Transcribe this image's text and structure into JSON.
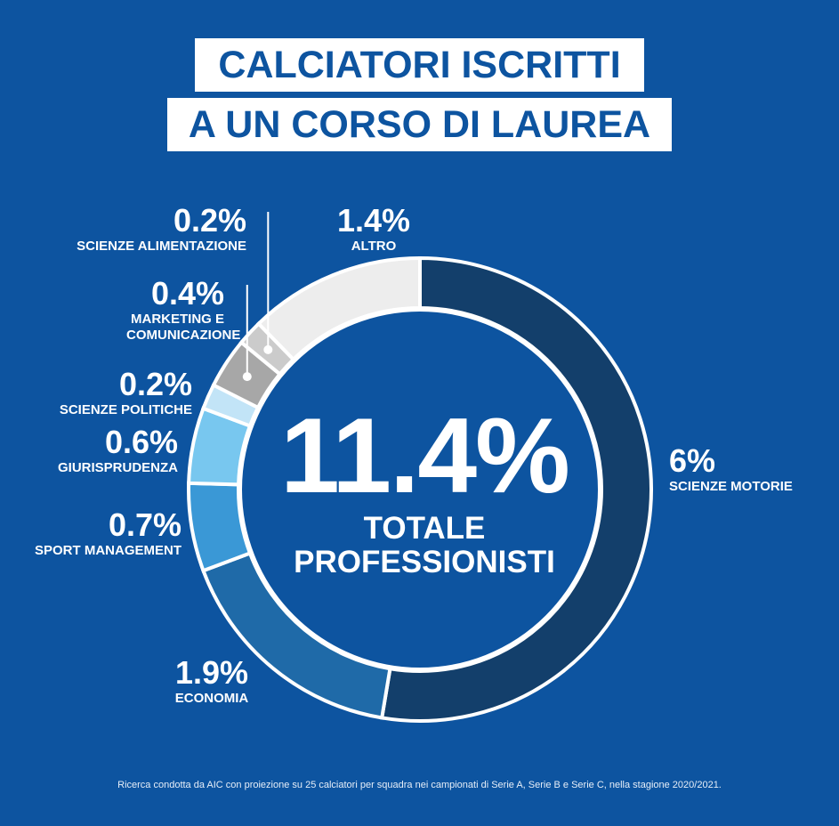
{
  "title": {
    "line1": "CALCIATORI ISCRITTI",
    "line2": "A UN CORSO DI LAUREA"
  },
  "center": {
    "value": "11.4%",
    "caption_line1": "TOTALE",
    "caption_line2": "PROFESSIONISTI"
  },
  "footnote": "Ricerca condotta da AIC con proiezione su 25 calciatori per squadra nei campionati di Serie A, Serie B e Serie C, nella stagione 2020/2021.",
  "colors": {
    "background": "#0d54a0",
    "inner_circle": "#0d54a0",
    "separator": "#ffffff"
  },
  "chart_data": {
    "type": "pie",
    "variant": "donut",
    "title": "CALCIATORI ISCRITTI A UN CORSO DI LAUREA",
    "total": 11.4,
    "slices": [
      {
        "label": "SCIENZE MOTORIE",
        "value": 6,
        "display": "6%",
        "color": "#133f6b"
      },
      {
        "label": "ECONOMIA",
        "value": 1.9,
        "display": "1.9%",
        "color": "#1f6aa8"
      },
      {
        "label": "SPORT MANAGEMENT",
        "value": 0.7,
        "display": "0.7%",
        "color": "#3a98d6"
      },
      {
        "label": "GIURISPRUDENZA",
        "value": 0.6,
        "display": "0.6%",
        "color": "#78c7ef"
      },
      {
        "label": "SCIENZE POLITICHE",
        "value": 0.2,
        "display": "0.2%",
        "color": "#c2e4f7"
      },
      {
        "label": "MARKETING E COMUNICAZIONE",
        "value": 0.4,
        "display": "0.4%",
        "color": "#a7a7a7"
      },
      {
        "label": "SCIENZE ALIMENTAZIONE",
        "value": 0.2,
        "display": "0.2%",
        "color": "#cbcbcb"
      },
      {
        "label": "ALTRO",
        "value": 1.4,
        "display": "1.4%",
        "color": "#ededed"
      }
    ]
  }
}
